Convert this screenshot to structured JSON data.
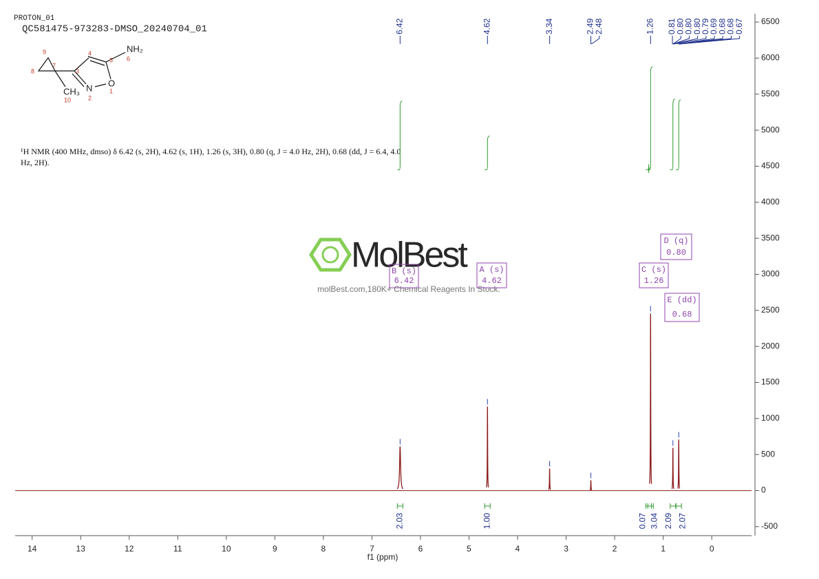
{
  "chart_data": {
    "type": "spectrum",
    "title": "PROTON_01",
    "subtitle": "QC581475-973283-DMSO_20240704_01",
    "annotation": "¹H NMR (400 MHz, dmso) δ 6.42 (s, 2H), 4.62 (s, 1H), 1.26 (s, 3H), 0.80 (q, J = 4.0 Hz, 2H), 0.68 (dd, J = 6.4, 4.0 Hz, 2H).",
    "watermark": "MolBest",
    "watermark_text": "molBest.com,180K+ Chemical Reagents In Stock.",
    "x_label": "f1 (ppm)",
    "xlim": [
      14.35,
      -0.82
    ],
    "xticks": [
      14,
      13,
      12,
      11,
      10,
      9,
      8,
      7,
      6,
      5,
      4,
      3,
      2,
      1,
      0
    ],
    "ylim": [
      -625,
      6615
    ],
    "yticks": [
      -500,
      0,
      500,
      1000,
      1500,
      2000,
      2500,
      3000,
      3500,
      4000,
      4500,
      5000,
      5500,
      6000,
      6500
    ],
    "color": "#8b1a1a",
    "peaks": {
      "x": [
        6.42,
        4.62,
        3.34,
        2.49,
        1.26,
        0.8,
        0.68
      ],
      "values": [
        612,
        1166,
        306,
        143,
        2457,
        593,
        707
      ]
    },
    "peak_labels": {
      "x": [
        6.42,
        4.62,
        3.34,
        2.49,
        2.48,
        1.26,
        0.81,
        0.8,
        0.8,
        0.8,
        0.79,
        0.69,
        0.68,
        0.68,
        0.67
      ],
      "labels": [
        "6.42",
        "4.62",
        "3.34",
        "2.49",
        "2.48",
        "1.26",
        "0.81",
        "0.80",
        "0.80",
        "0.80",
        "0.79",
        "0.69",
        "0.68",
        "0.68",
        "0.67"
      ]
    },
    "integrals": {
      "x": [
        6.42,
        4.62,
        1.3,
        1.26,
        0.8,
        0.68
      ],
      "values": [
        2.03,
        1,
        0.07,
        3.04,
        2.09,
        2.07
      ],
      "value_labels": [
        "2.03",
        "1.00",
        "0.07",
        "3.04",
        "2.09",
        "2.07"
      ]
    },
    "multiplets": [
      {
        "name": "B (s)",
        "shift": "6.42"
      },
      {
        "name": "A (s)",
        "shift": "4.62"
      },
      {
        "name": "C (s)",
        "shift": "1.26"
      },
      {
        "name": "D (q)",
        "shift": "0.80"
      },
      {
        "name": "E (dd)",
        "shift": "0.68"
      }
    ],
    "structure": {
      "atoms": [
        "NH₂",
        "O",
        "N",
        "CH₃"
      ],
      "numbers": [
        "9",
        "8",
        "7",
        "3",
        "4",
        "5",
        "6",
        "1",
        "2",
        "10"
      ]
    }
  }
}
